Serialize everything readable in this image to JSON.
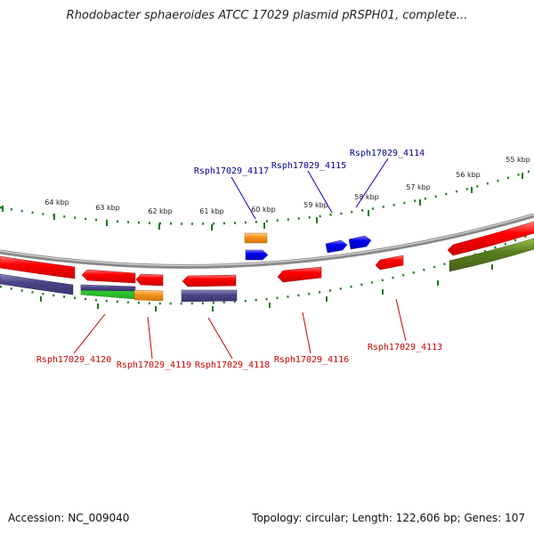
{
  "title": "Rhodobacter sphaeroides ATCC 17029 plasmid pRSPH01, complete...",
  "footer": {
    "accession": "Accession: NC_009040",
    "info": "Topology: circular; Length: 122,606 bp; Genes: 107"
  },
  "colors": {
    "forward_gene": "#0000ee",
    "reverse_gene": "#ee0000",
    "orange": "#f7941d",
    "purple": "#4b4687",
    "green": "#33cc33",
    "olive": "#5a7d1e",
    "tick": "#1a7a1a",
    "backbone": "#888888"
  },
  "scale_labels": [
    "64 kbp",
    "63 kbp",
    "62 kbp",
    "61 kbp",
    "60 kbp",
    "59 kbp",
    "58 kbp",
    "57 kbp",
    "56 kbp",
    "55 kbp"
  ],
  "gene_labels": {
    "forward": [
      "Rsph17029_4117",
      "Rsph17029_4115",
      "Rsph17029_4114"
    ],
    "reverse": [
      "Rsph17029_4120",
      "Rsph17029_4119",
      "Rsph17029_4118",
      "Rsph17029_4116",
      "Rsph17029_4113"
    ]
  }
}
